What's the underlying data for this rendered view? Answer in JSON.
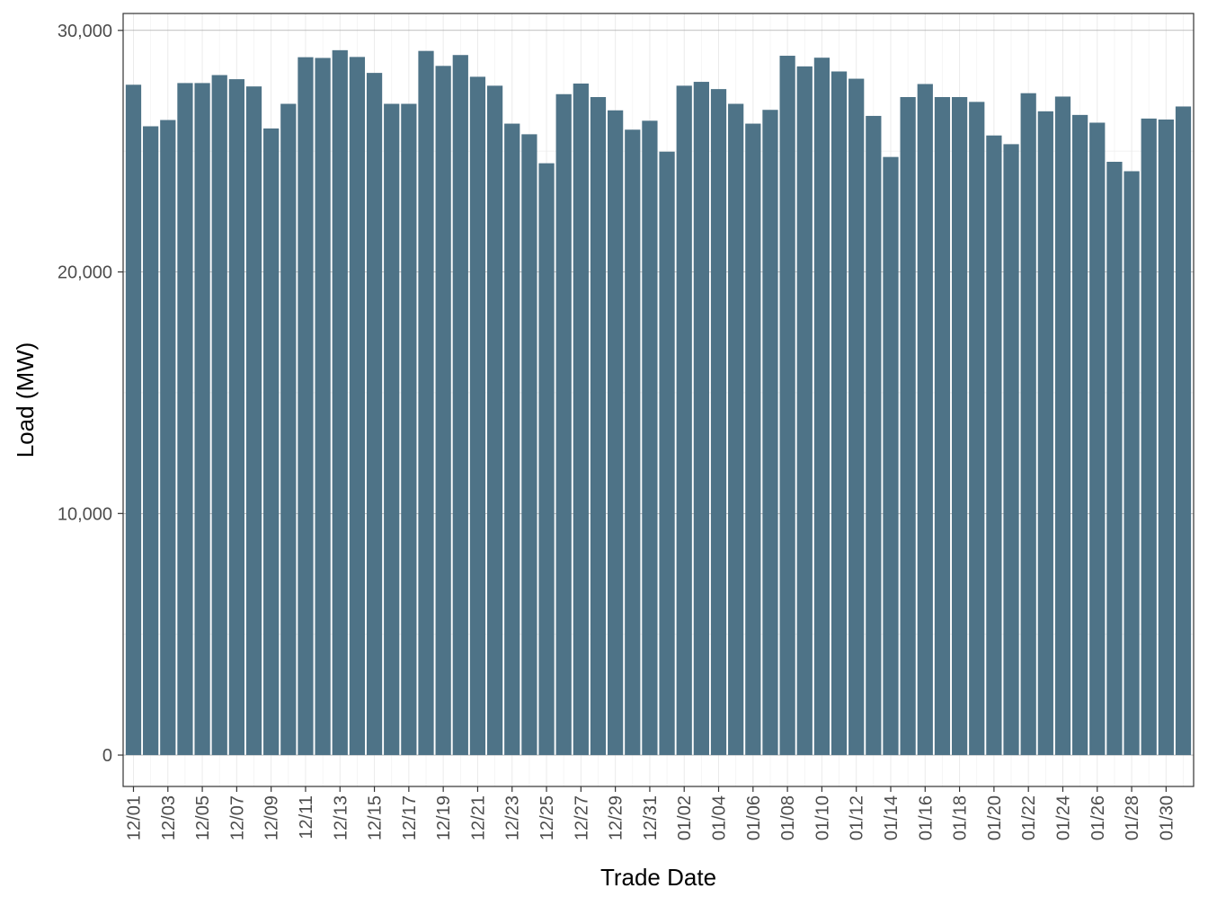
{
  "chart_data": {
    "type": "bar",
    "title": "",
    "xlabel": "Trade Date",
    "ylabel": "Load (MW)",
    "ylim": [
      -1300,
      30700
    ],
    "yticks": [
      0,
      10000,
      20000,
      30000
    ],
    "ytick_labels": [
      "0",
      "10,000",
      "20,000",
      "30,000"
    ],
    "grid": true,
    "bar_color": "#4e7387",
    "categories": [
      "12/01",
      "12/02",
      "12/03",
      "12/04",
      "12/05",
      "12/06",
      "12/07",
      "12/08",
      "12/09",
      "12/10",
      "12/11",
      "12/12",
      "12/13",
      "12/14",
      "12/15",
      "12/16",
      "12/17",
      "12/18",
      "12/19",
      "12/20",
      "12/21",
      "12/22",
      "12/23",
      "12/24",
      "12/25",
      "12/26",
      "12/27",
      "12/28",
      "12/29",
      "12/30",
      "12/31",
      "01/01",
      "01/02",
      "01/03",
      "01/04",
      "01/05",
      "01/06",
      "01/07",
      "01/08",
      "01/09",
      "01/10",
      "01/11",
      "01/12",
      "01/13",
      "01/14",
      "01/15",
      "01/16",
      "01/17",
      "01/18",
      "01/19",
      "01/20",
      "01/21",
      "01/22",
      "01/23",
      "01/24",
      "01/25",
      "01/26",
      "01/27",
      "01/28",
      "01/29",
      "01/30",
      "01/31"
    ],
    "tick_labels": [
      "12/01",
      "12/03",
      "12/05",
      "12/07",
      "12/09",
      "12/11",
      "12/13",
      "12/15",
      "12/17",
      "12/19",
      "12/21",
      "12/23",
      "12/25",
      "12/27",
      "12/29",
      "12/31",
      "01/02",
      "01/04",
      "01/06",
      "01/08",
      "01/10",
      "01/12",
      "01/14",
      "01/16",
      "01/18",
      "01/20",
      "01/22",
      "01/24",
      "01/26",
      "01/28",
      "01/30"
    ],
    "values": [
      27750,
      26030,
      26290,
      27820,
      27820,
      28150,
      27980,
      27680,
      25940,
      26960,
      28890,
      28860,
      29180,
      28900,
      28240,
      26960,
      26960,
      29150,
      28530,
      28980,
      28080,
      27710,
      26140,
      25700,
      24500,
      27360,
      27800,
      27240,
      26690,
      25890,
      26260,
      24980,
      27710,
      27870,
      27570,
      26960,
      26140,
      26710,
      28950,
      28510,
      28870,
      28300,
      28000,
      26460,
      24760,
      27240,
      27780,
      27240,
      27240,
      27040,
      25650,
      25290,
      27400,
      26650,
      27260,
      26500,
      26180,
      24560,
      24170,
      26350,
      26310,
      26850
    ]
  }
}
